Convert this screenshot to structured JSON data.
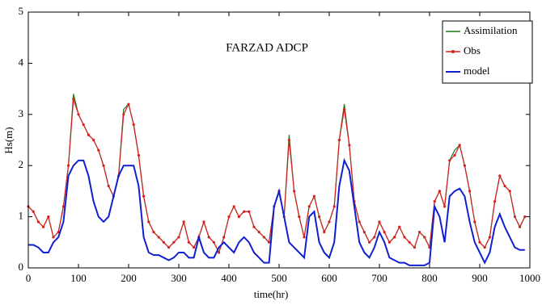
{
  "chart_data": {
    "type": "line",
    "title": "FARZAD ADCP",
    "x_label": "time(hr)",
    "y_label": "Hs(m)",
    "x": [
      0,
      10,
      20,
      30,
      40,
      50,
      60,
      70,
      80,
      90,
      100,
      110,
      120,
      130,
      140,
      150,
      160,
      170,
      180,
      190,
      200,
      210,
      220,
      230,
      240,
      250,
      260,
      270,
      280,
      290,
      300,
      310,
      320,
      330,
      340,
      350,
      360,
      370,
      380,
      390,
      400,
      410,
      420,
      430,
      440,
      450,
      460,
      470,
      480,
      490,
      500,
      510,
      520,
      530,
      540,
      550,
      560,
      570,
      580,
      590,
      600,
      610,
      620,
      630,
      640,
      650,
      660,
      670,
      680,
      690,
      700,
      710,
      720,
      730,
      740,
      750,
      760,
      770,
      780,
      790,
      800,
      810,
      820,
      830,
      840,
      850,
      860,
      870,
      880,
      890,
      900,
      910,
      920,
      930,
      940,
      950,
      960,
      970,
      980,
      990
    ],
    "series": [
      {
        "name": "Assimilation",
        "color": "#1a7a1a",
        "values": [
          1.2,
          1.1,
          0.9,
          0.8,
          1.0,
          0.6,
          0.7,
          1.2,
          2.0,
          3.4,
          3.0,
          2.8,
          2.6,
          2.5,
          2.3,
          2.0,
          1.6,
          1.4,
          1.8,
          3.1,
          3.2,
          2.8,
          2.2,
          1.4,
          0.9,
          0.7,
          0.6,
          0.5,
          0.4,
          0.5,
          0.6,
          0.9,
          0.5,
          0.4,
          0.6,
          0.9,
          0.6,
          0.5,
          0.3,
          0.6,
          1.0,
          1.2,
          1.0,
          1.1,
          1.1,
          0.8,
          0.7,
          0.6,
          0.5,
          1.2,
          1.5,
          1.0,
          2.6,
          1.5,
          1.0,
          0.6,
          1.2,
          1.4,
          1.0,
          0.7,
          0.9,
          1.2,
          2.5,
          3.2,
          2.4,
          1.3,
          0.9,
          0.7,
          0.5,
          0.6,
          0.9,
          0.7,
          0.5,
          0.6,
          0.8,
          0.6,
          0.5,
          0.4,
          0.7,
          0.6,
          0.4,
          1.3,
          1.5,
          1.2,
          2.1,
          2.3,
          2.4,
          2.0,
          1.5,
          0.9,
          0.5,
          0.4,
          0.6,
          1.3,
          1.8,
          1.6,
          1.5,
          1.0,
          0.8,
          1.0
        ]
      },
      {
        "name": "Obs",
        "color": "#d62020",
        "values": [
          1.2,
          1.1,
          0.9,
          0.8,
          1.0,
          0.6,
          0.7,
          1.2,
          2.0,
          3.3,
          3.0,
          2.8,
          2.6,
          2.5,
          2.3,
          2.0,
          1.6,
          1.4,
          1.8,
          3.0,
          3.2,
          2.8,
          2.2,
          1.4,
          0.9,
          0.7,
          0.6,
          0.5,
          0.4,
          0.5,
          0.6,
          0.9,
          0.5,
          0.4,
          0.6,
          0.9,
          0.6,
          0.5,
          0.3,
          0.6,
          1.0,
          1.2,
          1.0,
          1.1,
          1.1,
          0.8,
          0.7,
          0.6,
          0.5,
          1.2,
          1.5,
          1.0,
          2.5,
          1.5,
          1.0,
          0.6,
          1.2,
          1.4,
          1.0,
          0.7,
          0.9,
          1.2,
          2.5,
          3.1,
          2.4,
          1.3,
          0.9,
          0.7,
          0.5,
          0.6,
          0.9,
          0.7,
          0.5,
          0.6,
          0.8,
          0.6,
          0.5,
          0.4,
          0.7,
          0.6,
          0.4,
          1.3,
          1.5,
          1.2,
          2.1,
          2.2,
          2.4,
          2.0,
          1.5,
          0.9,
          0.5,
          0.4,
          0.6,
          1.3,
          1.8,
          1.6,
          1.5,
          1.0,
          0.8,
          1.0
        ]
      },
      {
        "name": "model",
        "color": "#1020d0",
        "values": [
          0.45,
          0.45,
          0.4,
          0.3,
          0.3,
          0.5,
          0.6,
          0.9,
          1.8,
          2.0,
          2.1,
          2.1,
          1.8,
          1.3,
          1.0,
          0.9,
          1.0,
          1.4,
          1.8,
          2.0,
          2.0,
          2.0,
          1.6,
          0.6,
          0.3,
          0.25,
          0.25,
          0.2,
          0.15,
          0.2,
          0.3,
          0.3,
          0.2,
          0.2,
          0.6,
          0.3,
          0.2,
          0.2,
          0.4,
          0.5,
          0.4,
          0.3,
          0.5,
          0.6,
          0.5,
          0.3,
          0.2,
          0.1,
          0.1,
          1.2,
          1.5,
          1.0,
          0.5,
          0.4,
          0.3,
          0.2,
          1.0,
          1.1,
          0.5,
          0.3,
          0.2,
          0.5,
          1.6,
          2.1,
          1.9,
          1.2,
          0.5,
          0.3,
          0.2,
          0.4,
          0.7,
          0.5,
          0.2,
          0.15,
          0.1,
          0.1,
          0.05,
          0.05,
          0.05,
          0.05,
          0.1,
          1.2,
          1.0,
          0.5,
          1.4,
          1.5,
          1.55,
          1.4,
          0.9,
          0.5,
          0.3,
          0.1,
          0.3,
          0.8,
          1.05,
          0.8,
          0.6,
          0.4,
          0.35,
          0.35
        ]
      }
    ],
    "xlim": [
      0,
      1000
    ],
    "xticks": [
      0,
      100,
      200,
      300,
      400,
      500,
      600,
      700,
      800,
      900,
      1000
    ],
    "ylim": [
      0,
      5
    ],
    "yticks": [
      0,
      1,
      2,
      3,
      4,
      5
    ],
    "legend": "upper right",
    "grid": false
  }
}
